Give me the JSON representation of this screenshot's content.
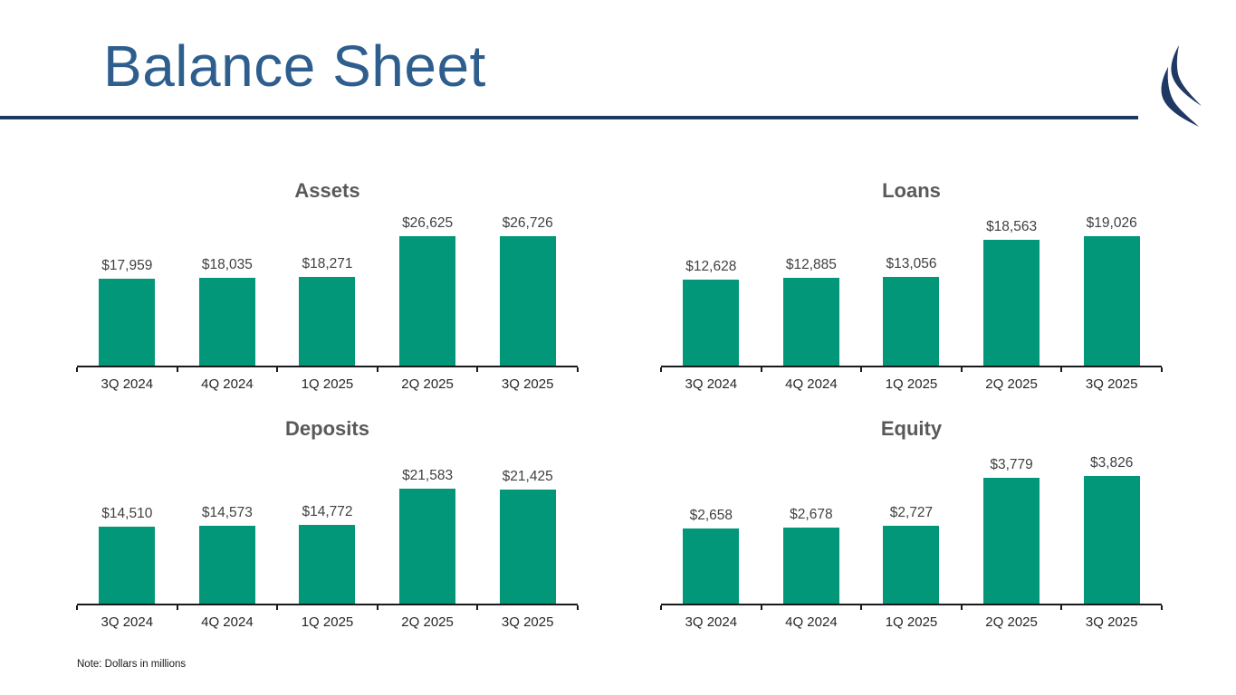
{
  "slide": {
    "title": "Balance Sheet",
    "note": "Note: Dollars in millions"
  },
  "colors": {
    "bar_teal": "#029778",
    "title_blue": "#2E5E8E",
    "navy": "#1F3864",
    "chart_title": "#595959",
    "data_label": "#404040",
    "axis_label": "#262626"
  },
  "chart_data": [
    {
      "type": "bar",
      "title": "Assets",
      "categories": [
        "3Q 2024",
        "4Q 2024",
        "1Q 2025",
        "2Q 2025",
        "3Q 2025"
      ],
      "values": [
        17959,
        18035,
        18271,
        26625,
        26726
      ],
      "labels": [
        "$17,959",
        "$18,035",
        "$18,271",
        "$26,625",
        "$26,726"
      ],
      "ylim": [
        0,
        28000
      ],
      "grid": false,
      "legend": "none"
    },
    {
      "type": "bar",
      "title": "Loans",
      "categories": [
        "3Q 2024",
        "4Q 2024",
        "1Q 2025",
        "2Q 2025",
        "3Q 2025"
      ],
      "values": [
        12628,
        12885,
        13056,
        18563,
        19026
      ],
      "labels": [
        "$12,628",
        "$12,885",
        "$13,056",
        "$18,563",
        "$19,026"
      ],
      "ylim": [
        0,
        20000
      ],
      "grid": false,
      "legend": "none"
    },
    {
      "type": "bar",
      "title": "Deposits",
      "categories": [
        "3Q 2024",
        "4Q 2024",
        "1Q 2025",
        "2Q 2025",
        "3Q 2025"
      ],
      "values": [
        14510,
        14573,
        14772,
        21583,
        21425
      ],
      "labels": [
        "$14,510",
        "$14,573",
        "$14,772",
        "$21,583",
        "$21,425"
      ],
      "ylim": [
        0,
        25500
      ],
      "grid": false,
      "legend": "none"
    },
    {
      "type": "bar",
      "title": "Equity",
      "categories": [
        "3Q 2024",
        "4Q 2024",
        "1Q 2025",
        "2Q 2025",
        "3Q 2025"
      ],
      "values": [
        2658,
        2678,
        2727,
        3779,
        3826
      ],
      "labels": [
        "$2,658",
        "$2,678",
        "$2,727",
        "$3,779",
        "$3,826"
      ],
      "ylim": [
        1000,
        4000
      ],
      "grid": false,
      "legend": "none"
    }
  ]
}
